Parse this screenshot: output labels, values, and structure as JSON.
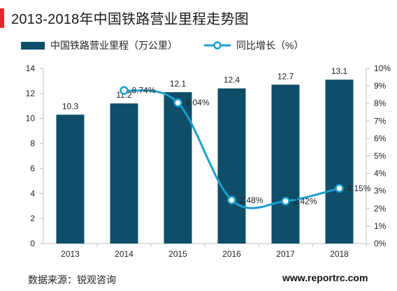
{
  "title": "2013-2018年中国铁路营业里程走势图",
  "source": "数据来源：锐观咨询",
  "website": "www.reportrc.com",
  "colors": {
    "bar": "#0e4e69",
    "line": "#1b9fd1",
    "accent": "#e02a2a"
  },
  "chart_data": {
    "type": "bar+line",
    "categories": [
      "2013",
      "2014",
      "2015",
      "2016",
      "2017",
      "2018"
    ],
    "series": [
      {
        "name": "中国铁路营业里程（万公里）",
        "type": "bar",
        "axis": "left",
        "values": [
          10.3,
          11.2,
          12.1,
          12.4,
          12.7,
          13.1
        ],
        "labels": [
          "10.3",
          "11.2",
          "12.1",
          "12.4",
          "12.7",
          "13.1"
        ]
      },
      {
        "name": "同比增长（%）",
        "type": "line",
        "axis": "right",
        "values": [
          8.74,
          8.04,
          2.48,
          2.42,
          3.15
        ],
        "x": [
          "2014",
          "2015",
          "2016",
          "2017",
          "2018"
        ],
        "labels": [
          "8.74%",
          "8.04%",
          "2.48%",
          "2.42%",
          "3.15%"
        ]
      }
    ],
    "y_left": {
      "min": 0,
      "max": 14,
      "ticks": [
        "0",
        "2",
        "4",
        "6",
        "8",
        "10",
        "12",
        "14"
      ]
    },
    "y_right": {
      "min": 0,
      "max": 10,
      "ticks": [
        "0%",
        "1%",
        "2%",
        "3%",
        "4%",
        "5%",
        "6%",
        "7%",
        "8%",
        "9%",
        "10%"
      ]
    },
    "grid": false,
    "legend_position": "top"
  }
}
